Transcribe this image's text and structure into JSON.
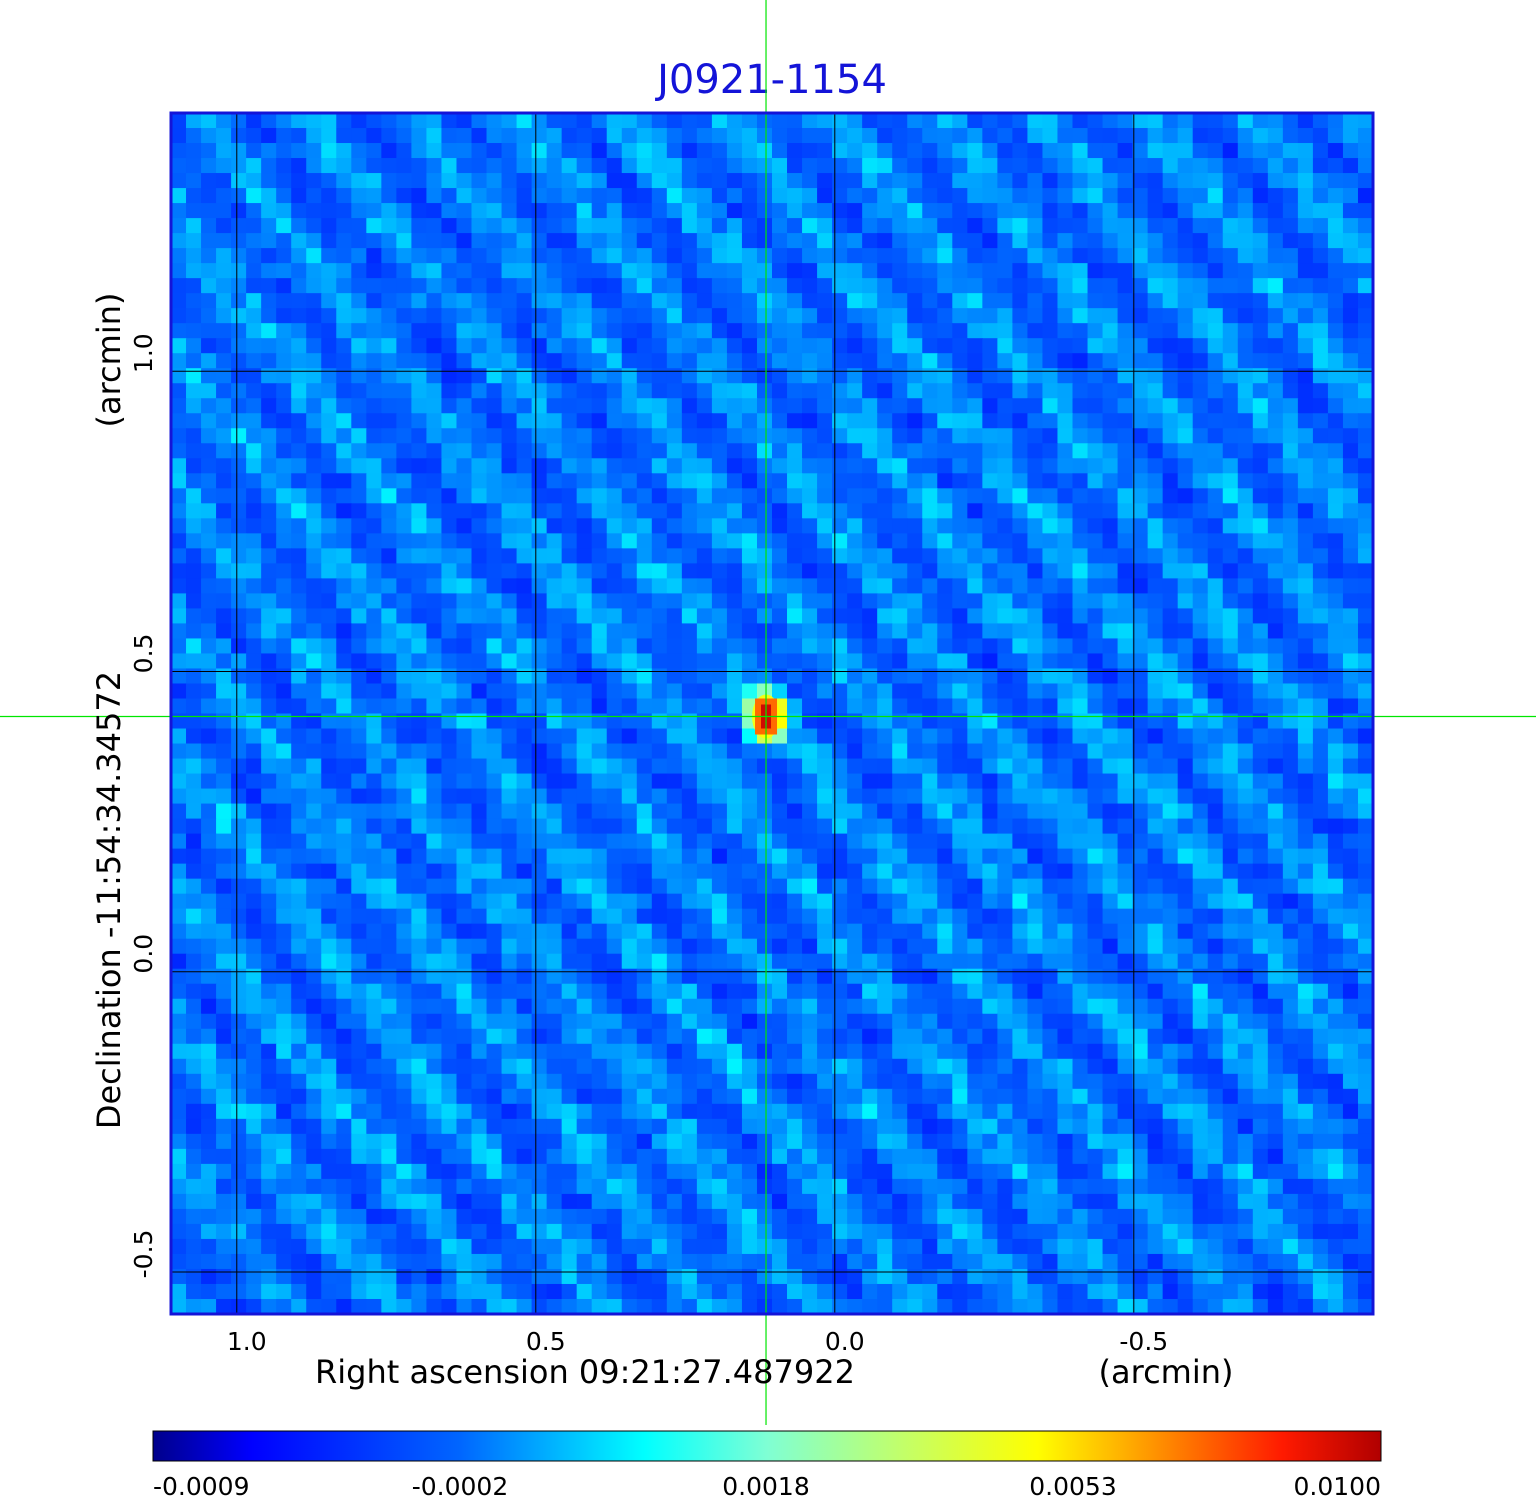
{
  "chart_data": {
    "type": "heatmap",
    "title": "J0921-1154",
    "xlabel": "Right ascension  09:21:27.487922",
    "xunit": "(arcmin)",
    "ylabel": "Declination  -11:54:34.34572",
    "yunit": "(arcmin)",
    "xlim": [
      1.11,
      -0.9
    ],
    "ylim": [
      -0.57,
      1.43
    ],
    "x_ticks": [
      1.0,
      0.5,
      0.0,
      -0.5
    ],
    "x_tick_labels": [
      "1.0",
      "0.5",
      "0.0",
      "-0.5"
    ],
    "y_ticks": [
      -0.5,
      0.0,
      0.5,
      1.0
    ],
    "y_tick_labels": [
      "-0.5",
      "0.0",
      "0.5",
      "1.0"
    ],
    "grid": true,
    "crosshair": {
      "x": 0.115,
      "y": 0.425,
      "color": "#00e600"
    },
    "source": {
      "x": 0.115,
      "y": 0.425,
      "peak": 0.01
    },
    "colormap": "jet",
    "colorbar": {
      "orientation": "horizontal",
      "tick_labels": [
        "-0.0009",
        "-0.0002",
        "0.0018",
        "0.0053",
        "0.0100"
      ],
      "tick_values": [
        -0.0009,
        -0.0002,
        0.0018,
        0.0053,
        0.01
      ]
    },
    "frame_color": "#1414d8"
  }
}
